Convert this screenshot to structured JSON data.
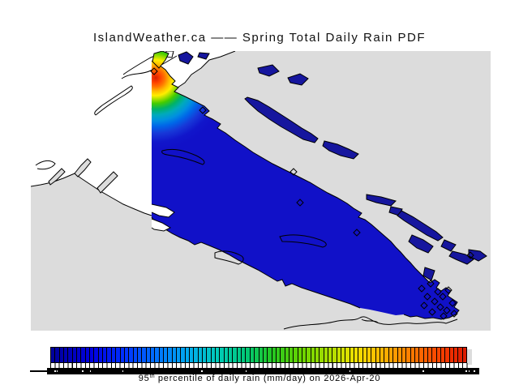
{
  "title": "IslandWeather.ca —— Spring Total Daily Rain PDF",
  "caption": {
    "value": "95",
    "sup": "th",
    "rest": " percentile of daily rain (mm/day) on 2026-Apr-20"
  },
  "map": {
    "colors": {
      "ocean-gray": "#dcdcdc",
      "outside-land-white": "#ffffff",
      "island-data-blue": "#1111c8",
      "islet-navy": "#16169e",
      "hotspot-red": "#d81e00",
      "coastline-black": "#000000"
    }
  },
  "colorbar": {
    "segments": 96,
    "stops": [
      [
        0.0,
        "#000099"
      ],
      [
        0.1,
        "#0000e0"
      ],
      [
        0.18,
        "#0033ff"
      ],
      [
        0.26,
        "#0077ff"
      ],
      [
        0.33,
        "#00aaee"
      ],
      [
        0.4,
        "#00ccbb"
      ],
      [
        0.47,
        "#00c878"
      ],
      [
        0.53,
        "#22c822"
      ],
      [
        0.6,
        "#66d400"
      ],
      [
        0.67,
        "#aadd00"
      ],
      [
        0.73,
        "#eee200"
      ],
      [
        0.79,
        "#ffbb00"
      ],
      [
        0.85,
        "#ff8800"
      ],
      [
        0.91,
        "#ff5500"
      ],
      [
        0.96,
        "#f03000"
      ],
      [
        1.0,
        "#d81800"
      ]
    ]
  }
}
